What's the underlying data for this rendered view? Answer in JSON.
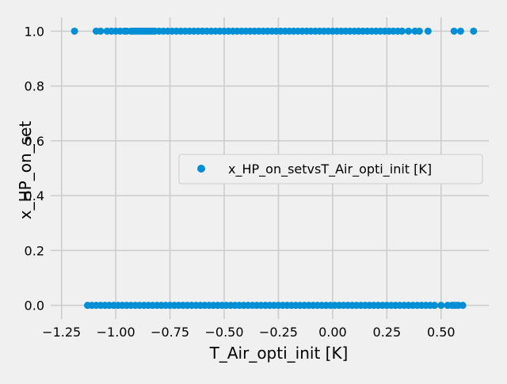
{
  "chart_data": {
    "type": "scatter",
    "title": "",
    "xlabel": "T_Air_opti_init [K]",
    "ylabel": "x_HP_on_set",
    "xlim": [
      -1.3,
      0.72
    ],
    "ylim": [
      -0.05,
      1.05
    ],
    "x_ticks": [
      -1.25,
      -1.0,
      -0.75,
      -0.5,
      -0.25,
      0.0,
      0.25,
      0.5
    ],
    "x_tick_labels": [
      "−1.25",
      "−1.00",
      "−0.75",
      "−0.50",
      "−0.25",
      "0.00",
      "0.25",
      "0.50"
    ],
    "y_ticks": [
      0.0,
      0.2,
      0.4,
      0.6,
      0.8,
      1.0
    ],
    "y_tick_labels": [
      "0.0",
      "0.2",
      "0.4",
      "0.6",
      "0.8",
      "1.0"
    ],
    "grid": true,
    "legend_position": "center-right",
    "marker_color": "#008fd5",
    "series": [
      {
        "name": "x_HP_on_setvsT_Air_opti_init [K]",
        "points_y1_x": [
          -1.19,
          -1.09,
          -1.07,
          -1.04,
          -1.02,
          -1.0,
          -0.98,
          -0.96,
          -0.95,
          -0.93,
          -0.92,
          -0.91,
          -0.9,
          -0.89,
          -0.88,
          -0.87,
          -0.86,
          -0.85,
          -0.84,
          -0.83,
          -0.82,
          -0.8,
          -0.78,
          -0.76,
          -0.74,
          -0.72,
          -0.7,
          -0.68,
          -0.66,
          -0.64,
          -0.62,
          -0.6,
          -0.58,
          -0.56,
          -0.54,
          -0.52,
          -0.5,
          -0.48,
          -0.46,
          -0.44,
          -0.42,
          -0.4,
          -0.38,
          -0.36,
          -0.34,
          -0.32,
          -0.3,
          -0.28,
          -0.26,
          -0.24,
          -0.22,
          -0.2,
          -0.18,
          -0.16,
          -0.14,
          -0.12,
          -0.1,
          -0.08,
          -0.06,
          -0.04,
          -0.02,
          0.0,
          0.02,
          0.04,
          0.06,
          0.08,
          0.1,
          0.12,
          0.14,
          0.16,
          0.18,
          0.2,
          0.22,
          0.24,
          0.26,
          0.28,
          0.3,
          0.32,
          0.35,
          0.38,
          0.4,
          0.44,
          0.56,
          0.59,
          0.65
        ],
        "points_y0_x": [
          -1.13,
          -1.11,
          -1.09,
          -1.07,
          -1.05,
          -1.03,
          -1.01,
          -0.99,
          -0.97,
          -0.95,
          -0.93,
          -0.91,
          -0.89,
          -0.87,
          -0.85,
          -0.83,
          -0.81,
          -0.79,
          -0.77,
          -0.75,
          -0.73,
          -0.71,
          -0.69,
          -0.67,
          -0.65,
          -0.63,
          -0.61,
          -0.59,
          -0.57,
          -0.55,
          -0.53,
          -0.51,
          -0.49,
          -0.47,
          -0.45,
          -0.43,
          -0.41,
          -0.39,
          -0.37,
          -0.35,
          -0.33,
          -0.31,
          -0.29,
          -0.27,
          -0.25,
          -0.23,
          -0.21,
          -0.19,
          -0.17,
          -0.15,
          -0.13,
          -0.11,
          -0.09,
          -0.07,
          -0.05,
          -0.03,
          -0.01,
          0.01,
          0.03,
          0.05,
          0.07,
          0.09,
          0.11,
          0.13,
          0.15,
          0.17,
          0.19,
          0.21,
          0.23,
          0.25,
          0.27,
          0.29,
          0.31,
          0.33,
          0.35,
          0.37,
          0.39,
          0.41,
          0.43,
          0.45,
          0.47,
          0.5,
          0.53,
          0.55,
          0.56,
          0.57,
          0.58,
          0.6
        ]
      }
    ]
  }
}
